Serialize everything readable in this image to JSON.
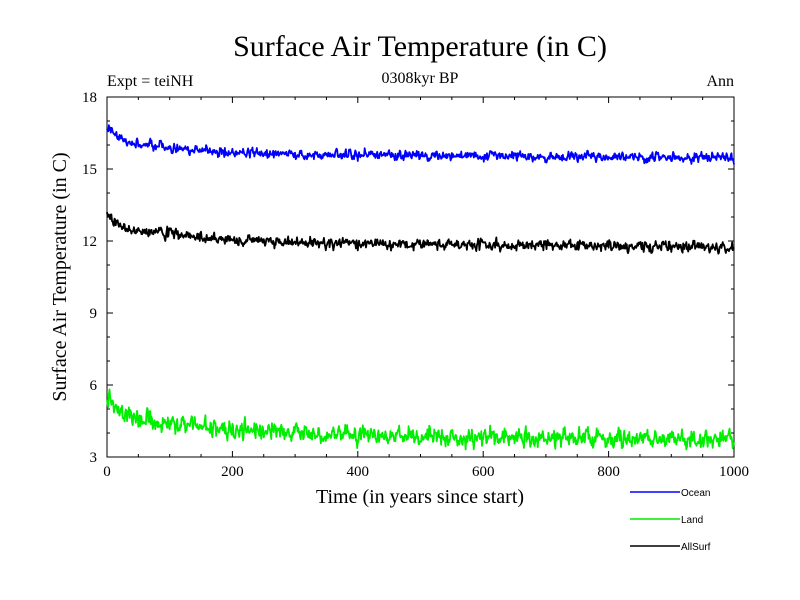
{
  "chart_data": {
    "type": "line",
    "title": "Surface Air Temperature (in C)",
    "subtitle": "0308kyr BP",
    "left_annotation": "Expt = teiNH",
    "right_annotation": "Ann",
    "xlabel": "Time (in years since start)",
    "ylabel": "Surface Air Temperature (in C)",
    "xlim": [
      0,
      1000
    ],
    "ylim": [
      3,
      18
    ],
    "xticks": [
      0,
      200,
      400,
      600,
      800,
      1000
    ],
    "yticks": [
      3,
      6,
      9,
      12,
      15,
      18
    ],
    "legend_position": "bottom-right",
    "series": [
      {
        "name": "Ocean",
        "color": "#0000ff",
        "x": [
          0,
          10,
          20,
          40,
          60,
          80,
          100,
          150,
          200,
          300,
          400,
          500,
          600,
          700,
          800,
          900,
          1000
        ],
        "values": [
          16.8,
          16.5,
          16.3,
          16.1,
          16.0,
          16.0,
          15.9,
          15.8,
          15.7,
          15.6,
          15.6,
          15.55,
          15.55,
          15.5,
          15.5,
          15.5,
          15.45
        ],
        "noise": 0.12
      },
      {
        "name": "Land",
        "color": "#00ee00",
        "x": [
          0,
          10,
          20,
          40,
          60,
          80,
          100,
          150,
          200,
          300,
          400,
          500,
          600,
          700,
          800,
          900,
          1000
        ],
        "values": [
          5.5,
          5.2,
          4.9,
          4.7,
          4.6,
          4.5,
          4.45,
          4.3,
          4.15,
          4.0,
          3.9,
          3.85,
          3.8,
          3.8,
          3.75,
          3.8,
          3.7
        ],
        "noise": 0.22
      },
      {
        "name": "AllSurf",
        "color": "#000000",
        "x": [
          0,
          10,
          20,
          40,
          60,
          80,
          100,
          150,
          200,
          300,
          400,
          500,
          600,
          700,
          800,
          900,
          1000
        ],
        "values": [
          13.2,
          12.9,
          12.6,
          12.45,
          12.4,
          12.35,
          12.3,
          12.15,
          12.05,
          11.95,
          11.9,
          11.85,
          11.85,
          11.8,
          11.8,
          11.8,
          11.7
        ],
        "noise": 0.13
      }
    ]
  }
}
